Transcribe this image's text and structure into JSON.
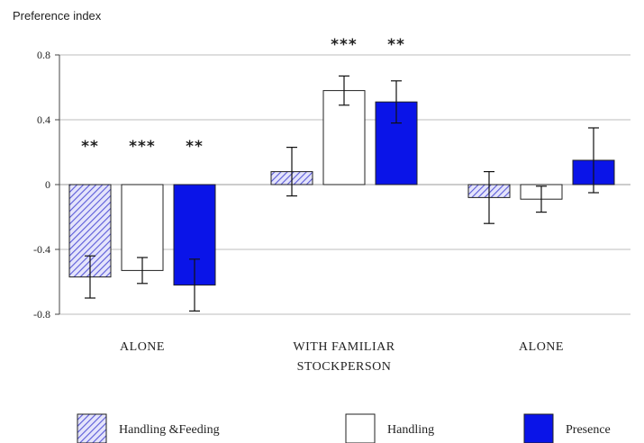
{
  "chart_data": {
    "type": "bar",
    "ylabel": "Preference index",
    "ylim": [
      -0.8,
      0.8
    ],
    "yticks": [
      "0.8",
      "0.4",
      "0",
      "-0.4",
      "-0.8"
    ],
    "ytick_values": [
      0.8,
      0.4,
      0,
      -0.4,
      -0.8
    ],
    "grid": true,
    "categories": [
      [
        "ALONE"
      ],
      [
        "WITH FAMILIAR",
        "STOCKPERSON"
      ],
      [
        "ALONE"
      ]
    ],
    "series": [
      {
        "name": "Handling &Feeding",
        "values": [
          -0.57,
          0.08,
          -0.08
        ],
        "error": [
          0.13,
          0.15,
          0.16
        ],
        "significance": [
          "**",
          "",
          ""
        ]
      },
      {
        "name": "Handling",
        "values": [
          -0.53,
          0.58,
          -0.09
        ],
        "error": [
          0.08,
          0.09,
          0.08
        ],
        "significance": [
          "***",
          "***",
          ""
        ]
      },
      {
        "name": "Presence",
        "values": [
          -0.62,
          0.51,
          0.15
        ],
        "error": [
          0.16,
          0.13,
          0.2
        ],
        "significance": [
          "**",
          "**",
          ""
        ]
      }
    ],
    "legend_position": "bottom"
  },
  "colors": {
    "hatch": "#5a5ad8",
    "hatch_bg": "#e4e4fb",
    "handling_fill": "#ffffff",
    "presence_fill": "#0a14e8",
    "outline": "#222222",
    "grid": "#bdbdbd"
  }
}
